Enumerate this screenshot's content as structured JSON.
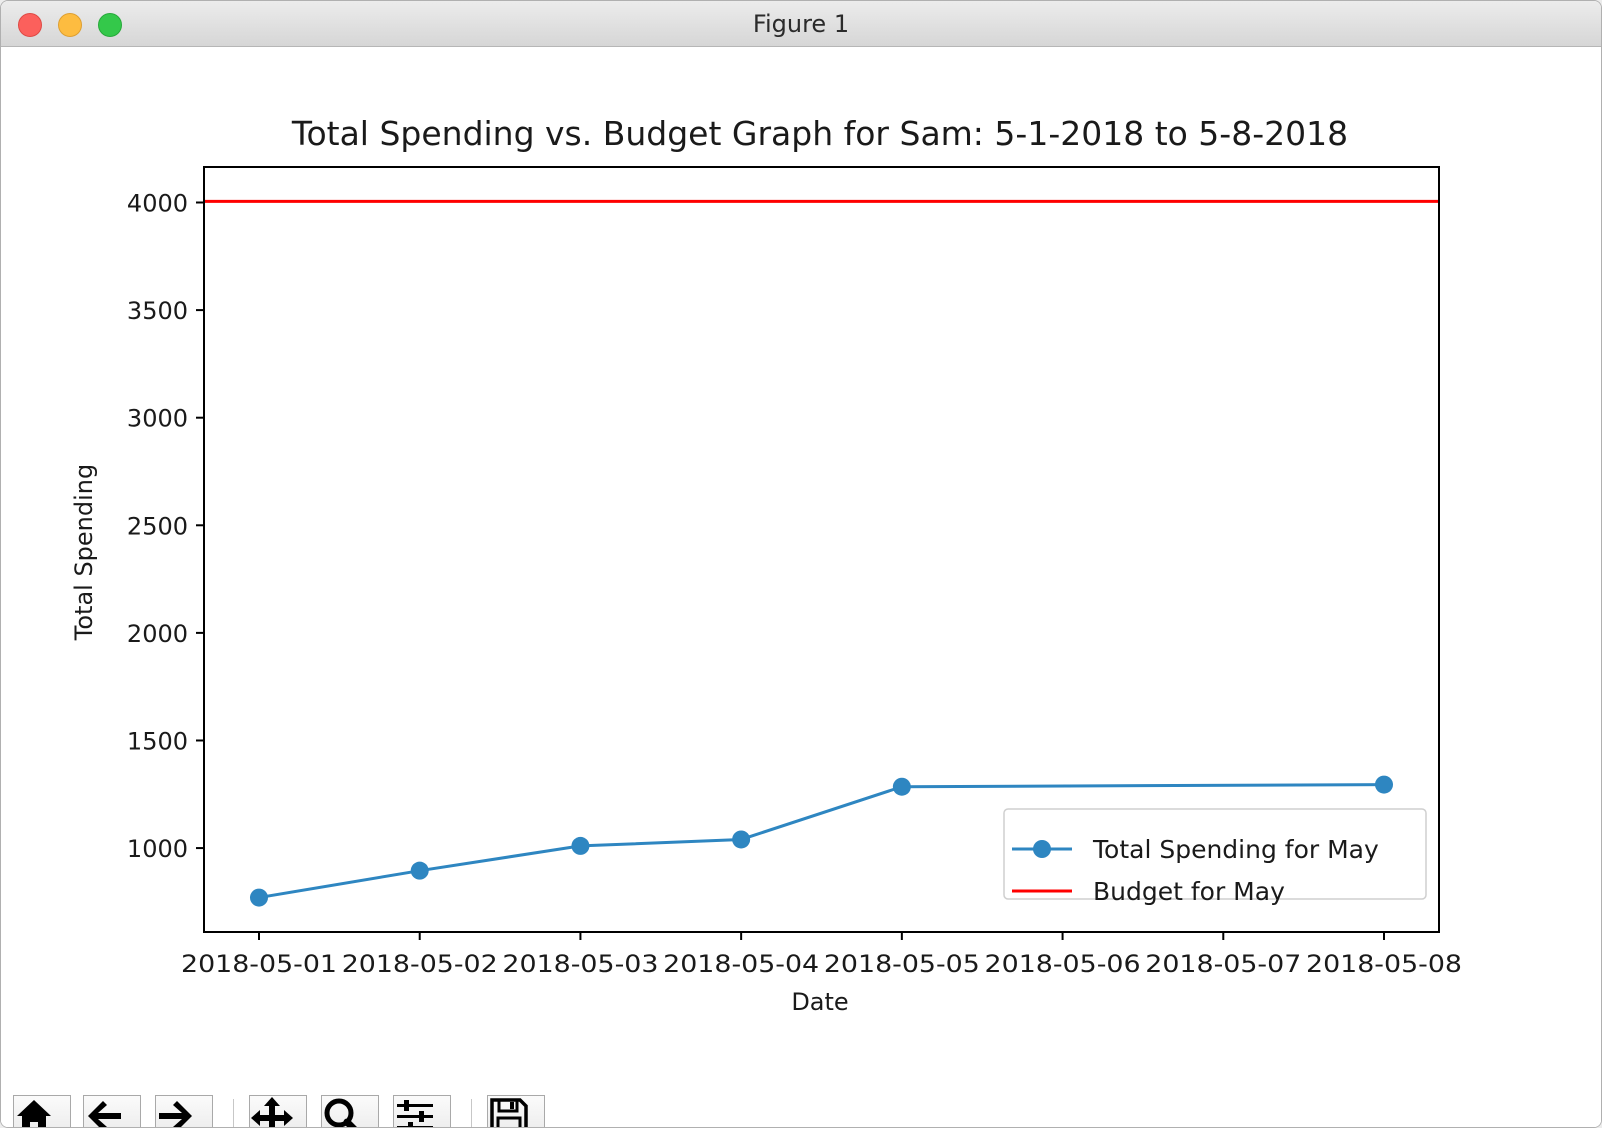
{
  "window": {
    "title": "Figure 1"
  },
  "chart_data": {
    "type": "line",
    "title": "Total Spending vs. Budget Graph for Sam: 5-1-2018 to 5-8-2018",
    "xlabel": "Date",
    "ylabel": "Total Spending",
    "x": [
      "2018-05-01",
      "2018-05-02",
      "2018-05-03",
      "2018-05-04",
      "2018-05-05",
      "2018-05-06",
      "2018-05-07",
      "2018-05-08"
    ],
    "xtick_labels": [
      "2018-05-01",
      "2018-05-02",
      "2018-05-03",
      "2018-05-04",
      "2018-05-05",
      "2018-05-06",
      "2018-05-07",
      "2018-05-08"
    ],
    "ylim": [
      610,
      4165
    ],
    "yticks": [
      1000,
      1500,
      2000,
      2500,
      3000,
      3500,
      4000
    ],
    "grid": false,
    "legend_position": "lower right",
    "series": [
      {
        "name": "Total Spending for May",
        "kind": "line-marker",
        "color": "#2e86c1",
        "points": [
          {
            "x": "2018-05-01",
            "y": 770
          },
          {
            "x": "2018-05-02",
            "y": 895
          },
          {
            "x": "2018-05-03",
            "y": 1010
          },
          {
            "x": "2018-05-04",
            "y": 1040
          },
          {
            "x": "2018-05-05",
            "y": 1285
          },
          {
            "x": "2018-05-08",
            "y": 1295
          }
        ]
      },
      {
        "name": "Budget for May",
        "kind": "hline",
        "color": "#ff0000",
        "y": 4005
      }
    ]
  },
  "toolbar": {
    "buttons": [
      {
        "name": "home-button",
        "icon": "home-icon"
      },
      {
        "name": "back-button",
        "icon": "arrow-left-icon"
      },
      {
        "name": "forward-button",
        "icon": "arrow-right-icon"
      },
      {
        "name": "pan-button",
        "icon": "move-icon"
      },
      {
        "name": "zoom-button",
        "icon": "magnifier-icon"
      },
      {
        "name": "configure-subplots-button",
        "icon": "sliders-icon"
      },
      {
        "name": "save-button",
        "icon": "floppy-disk-icon"
      }
    ]
  }
}
